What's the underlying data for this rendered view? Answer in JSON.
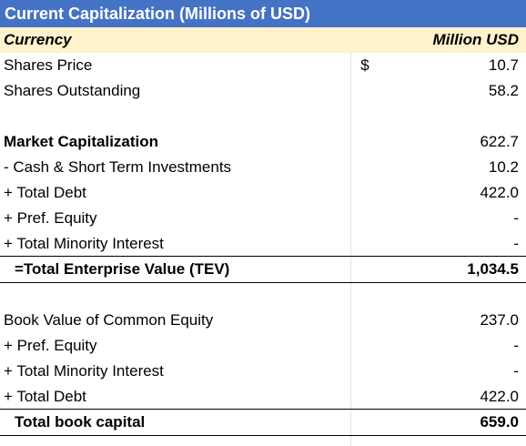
{
  "title": "Current Capitalization (Millions of USD)",
  "header": {
    "label": "Currency",
    "value": "Million USD"
  },
  "rows": [
    {
      "label": "Shares Price",
      "symbol": "$",
      "value": "10.7"
    },
    {
      "label": "Shares Outstanding",
      "symbol": "",
      "value": "58.2"
    },
    {
      "label": "",
      "symbol": "",
      "value": ""
    },
    {
      "label": "Market Capitalization",
      "symbol": "",
      "value": "622.7"
    },
    {
      "label": "- Cash & Short Term Investments",
      "symbol": "",
      "value": "10.2"
    },
    {
      "label": "+ Total Debt",
      "symbol": "",
      "value": "422.0"
    },
    {
      "label": "+ Pref. Equity",
      "symbol": "",
      "value": "-"
    },
    {
      "label": "+ Total Minority Interest",
      "symbol": "",
      "value": "-"
    },
    {
      "label": "=Total Enterprise Value (TEV)",
      "symbol": "",
      "value": "1,034.5"
    },
    {
      "label": "",
      "symbol": "",
      "value": ""
    },
    {
      "label": "Book Value of Common Equity",
      "symbol": "",
      "value": "237.0"
    },
    {
      "label": "+ Pref. Equity",
      "symbol": "",
      "value": "-"
    },
    {
      "label": "+ Total Minority Interest",
      "symbol": "",
      "value": "-"
    },
    {
      "label": "+ Total Debt",
      "symbol": "",
      "value": "422.0"
    },
    {
      "label": "Total book capital",
      "symbol": "",
      "value": "659.0"
    }
  ]
}
